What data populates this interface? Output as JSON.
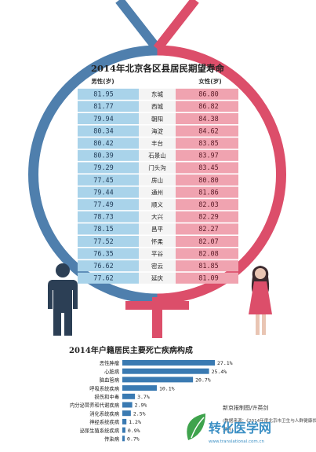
{
  "chart_data": [
    {
      "type": "table",
      "title": "2014年北京各区县居民期望寿命",
      "male_header": "男性(岁)",
      "female_header": "女性(岁)",
      "rows": [
        {
          "district": "东城",
          "male": "81.95",
          "female": "86.80"
        },
        {
          "district": "西城",
          "male": "81.77",
          "female": "86.82"
        },
        {
          "district": "朝阳",
          "male": "79.94",
          "female": "84.38"
        },
        {
          "district": "海淀",
          "male": "80.34",
          "female": "84.62"
        },
        {
          "district": "丰台",
          "male": "80.42",
          "female": "83.85"
        },
        {
          "district": "石景山",
          "male": "80.39",
          "female": "83.97"
        },
        {
          "district": "门头沟",
          "male": "79.29",
          "female": "83.45"
        },
        {
          "district": "房山",
          "male": "77.45",
          "female": "80.80"
        },
        {
          "district": "通州",
          "male": "79.44",
          "female": "81.86"
        },
        {
          "district": "顺义",
          "male": "77.49",
          "female": "82.03"
        },
        {
          "district": "大兴",
          "male": "78.73",
          "female": "82.29"
        },
        {
          "district": "昌平",
          "male": "78.15",
          "female": "82.27"
        },
        {
          "district": "怀柔",
          "male": "77.52",
          "female": "82.07"
        },
        {
          "district": "平谷",
          "male": "76.35",
          "female": "82.08"
        },
        {
          "district": "密云",
          "male": "76.62",
          "female": "81.85"
        },
        {
          "district": "延庆",
          "male": "77.62",
          "female": "81.09"
        }
      ]
    },
    {
      "type": "bar",
      "orientation": "horizontal",
      "title": "2014年户籍居民主要死亡疾病构成",
      "categories": [
        "恶性肿瘤",
        "心脏病",
        "脑血管病",
        "呼吸系统疾病",
        "损伤和中毒",
        "内分泌营养和代谢疾病",
        "消化系统疾病",
        "神经系统疾病",
        "泌尿生殖系统疾病",
        "传染病"
      ],
      "values": [
        27.1,
        25.4,
        20.7,
        10.1,
        3.7,
        2.9,
        2.5,
        1.2,
        0.9,
        0.7
      ],
      "value_labels": [
        "27.1%",
        "25.4%",
        "20.7%",
        "10.1%",
        "3.7%",
        "2.9%",
        "2.5%",
        "1.2%",
        "0.9%",
        "0.7%"
      ],
      "xlim": [
        0,
        27.1
      ],
      "bar_color": "#3a7ab2"
    }
  ],
  "credit": {
    "line1": "新京报制图/许英剑",
    "line2": "(数据来源：《2014年度北京市卫生与人群健康状况》",
    "line3": "报告)"
  },
  "watermark": {
    "text": "转化医学网",
    "sub": "www.translational.com.cn"
  },
  "colors": {
    "male": "#4f7fad",
    "male_light": "#a9d3ea",
    "female": "#dc4e6a",
    "female_light": "#f0a3b0",
    "district_bg": "#f4f4f4",
    "dark": "#2c3f55"
  }
}
